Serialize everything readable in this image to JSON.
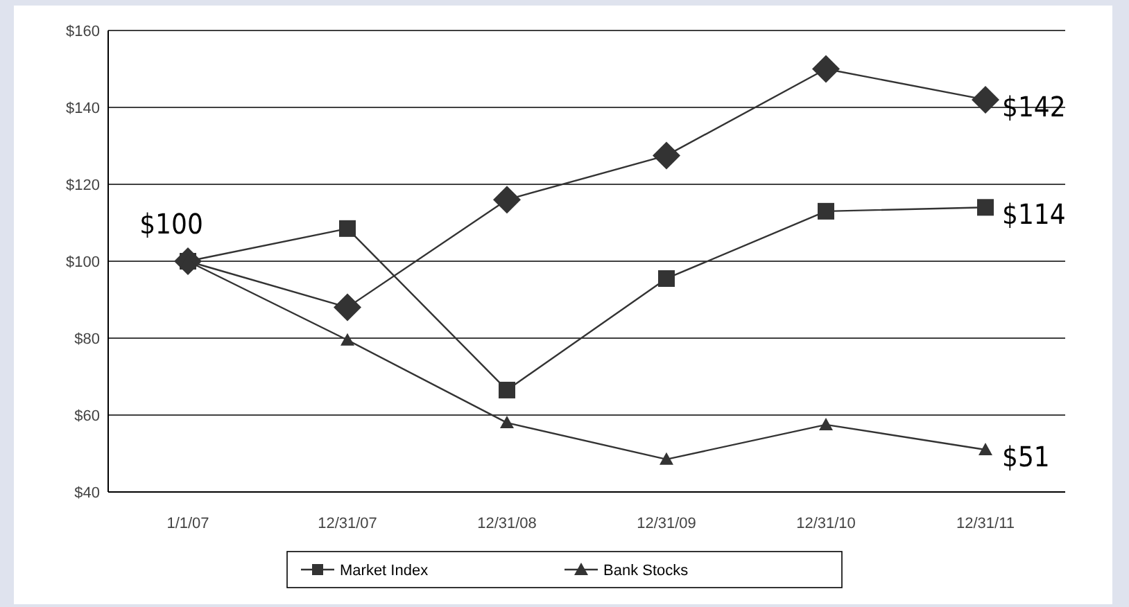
{
  "chart_data": {
    "type": "line",
    "categories": [
      "1/1/07",
      "12/31/07",
      "12/31/08",
      "12/31/09",
      "12/31/10",
      "12/31/11"
    ],
    "ylim": [
      40,
      160
    ],
    "yticks": [
      {
        "value": 40,
        "label": "$40"
      },
      {
        "value": 60,
        "label": "$60"
      },
      {
        "value": 80,
        "label": "$80"
      },
      {
        "value": 100,
        "label": "$100"
      },
      {
        "value": 120,
        "label": "$120"
      },
      {
        "value": 140,
        "label": "$140"
      },
      {
        "value": 160,
        "label": "$160"
      }
    ],
    "grid": "y",
    "legend": "bottom",
    "line_style": "solid",
    "series": [
      {
        "color": "#333333",
        "marker": "diamond",
        "values": [
          100,
          88,
          116,
          127.5,
          150,
          142
        ],
        "value_labels": [
          "$100",
          null,
          null,
          null,
          null,
          "$142"
        ]
      },
      {
        "name": "Market Index",
        "color": "#333333",
        "marker": "square",
        "values": [
          100,
          108.5,
          66.5,
          95.5,
          113,
          114
        ],
        "value_labels": [
          null,
          null,
          null,
          null,
          null,
          "$114"
        ]
      },
      {
        "name": "Bank Stocks",
        "color": "#333333",
        "marker": "triangle",
        "values": [
          100,
          79.5,
          58,
          48.5,
          57.5,
          51
        ],
        "value_labels": [
          null,
          null,
          null,
          null,
          null,
          "$51"
        ]
      }
    ]
  }
}
